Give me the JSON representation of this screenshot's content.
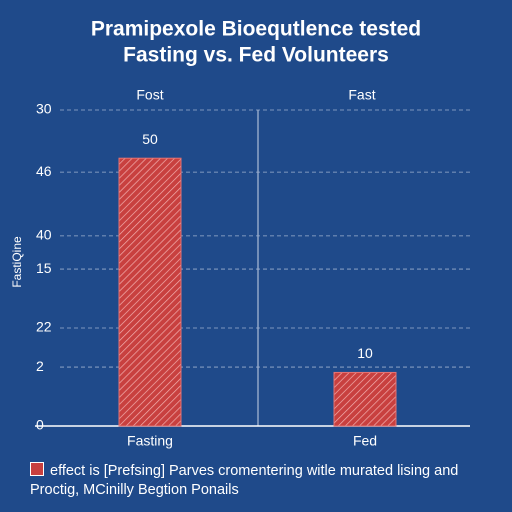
{
  "chart_data": {
    "type": "bar",
    "title": [
      "Pramipexole Bioequtlence tested",
      "Fasting vs. Fed Volunteers"
    ],
    "y_label": "FastiQine",
    "annotations": [
      "Fost",
      "Fast"
    ],
    "categories": [
      "Fasting",
      "Fed"
    ],
    "series": [
      {
        "name": "effect is [Prefsing] Parves cromentering witle murated lising and Proctig, MCinilly Begtion Ponails",
        "color": "#c8403f",
        "values": [
          50,
          10
        ]
      }
    ],
    "ylim": [
      0,
      59
    ],
    "yticks": [
      0,
      {
        "value": 11,
        "label": "2"
      },
      {
        "value": 18.3,
        "label": "22"
      },
      {
        "value": 29.3,
        "label": "15"
      },
      {
        "value": 35.5,
        "label": "40"
      },
      {
        "value": 47.4,
        "label": "46"
      },
      {
        "value": 59,
        "label": "30"
      }
    ],
    "grid": true
  }
}
